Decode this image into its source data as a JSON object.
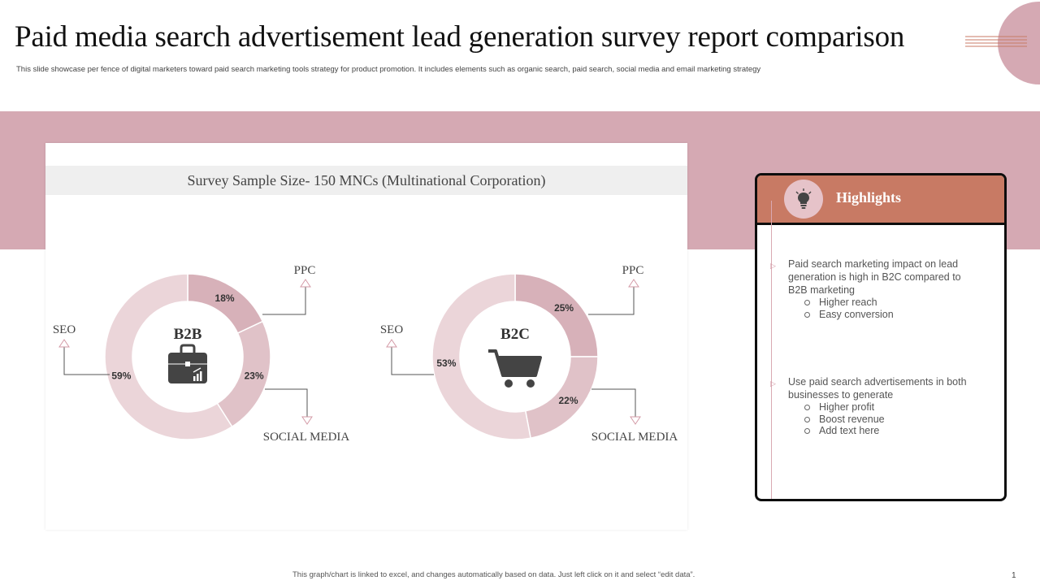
{
  "header": {
    "title": "Paid media search advertisement lead generation survey report comparison",
    "subtitle": "This slide showcase per fence of digital marketers toward paid search marketing tools strategy for product promotion. It includes elements such as organic search, paid search, social media and email marketing strategy"
  },
  "chart_data": [
    {
      "type": "pie",
      "variant": "donut",
      "center_label": "B2B",
      "center_icon": "briefcase-growth-icon",
      "categories": [
        "PPC",
        "SOCIAL MEDIA",
        "SEO"
      ],
      "values": [
        18,
        23,
        59
      ],
      "value_labels": [
        "18%",
        "23%",
        "59%"
      ],
      "colors": [
        "#d7b1b9",
        "#e0c2c8",
        "#ebd5d9"
      ]
    },
    {
      "type": "pie",
      "variant": "donut",
      "center_label": "B2C",
      "center_icon": "shopping-cart-icon",
      "categories": [
        "PPC",
        "SOCIAL MEDIA",
        "SEO"
      ],
      "values": [
        25,
        22,
        53
      ],
      "value_labels": [
        "25%",
        "22%",
        "53%"
      ],
      "colors": [
        "#d7b1b9",
        "#e0c2c8",
        "#ebd5d9"
      ]
    }
  ],
  "survey": {
    "sample_size_label": "Survey Sample Size- 150 MNCs (Multinational Corporation)"
  },
  "highlights": {
    "title": "Highlights",
    "icon": "lightbulb-icon",
    "points": [
      {
        "text": "Paid search marketing impact on lead generation  is high in B2C compared  to B2B marketing",
        "subs": [
          "Higher reach",
          "Easy conversion"
        ]
      },
      {
        "text": "Use paid search advertisements  in both businesses to generate",
        "subs": [
          "Higher profit",
          "Boost revenue",
          "Add text here"
        ]
      }
    ]
  },
  "footer": {
    "note": "This graph/chart is linked to excel, and changes automatically based on data. Just left click on it and select “edit data”.",
    "page_number": "1"
  },
  "colors": {
    "band": "#d5a9b3",
    "accent": "#c87a64",
    "donut_dark": "#d7b1b9",
    "donut_mid": "#e0c2c8",
    "donut_light": "#ebd5d9"
  }
}
